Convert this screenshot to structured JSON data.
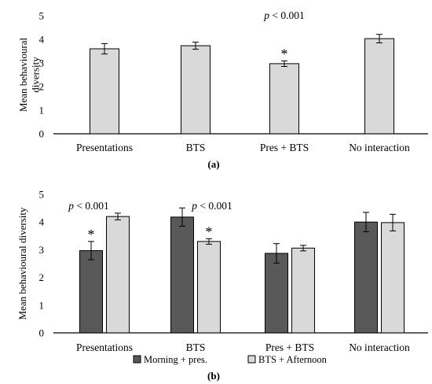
{
  "colors": {
    "light_bar": "#d9d9d9",
    "dark_bar": "#595959",
    "outline": "#000000",
    "axis": "#000000"
  },
  "chart_data": [
    {
      "type": "bar",
      "panel_label": "(a)",
      "ylabel": "Mean behavioural diversity",
      "ylim": [
        0,
        5
      ],
      "yticks": [
        "0",
        "1",
        "2",
        "3",
        "4",
        "5"
      ],
      "categories": [
        "Presentations",
        "BTS",
        "Pres + BTS",
        "No interaction"
      ],
      "series": [
        {
          "values": [
            3.6,
            3.73,
            2.97,
            4.03
          ],
          "errors": [
            0.22,
            0.15,
            0.12,
            0.18
          ]
        }
      ],
      "annotations": [
        {
          "text": "p < 0.001",
          "category_index": 2
        },
        {
          "text": "*",
          "category_index": 2,
          "series_index": 0
        }
      ],
      "grid": false
    },
    {
      "type": "bar",
      "panel_label": "(b)",
      "ylabel": "Mean behavioural diversity",
      "ylim": [
        0,
        5
      ],
      "yticks": [
        "0",
        "1",
        "2",
        "3",
        "4",
        "5"
      ],
      "categories": [
        "Presentations",
        "BTS",
        "Pres + BTS",
        "No interaction"
      ],
      "series": [
        {
          "name": "Morning + pres.",
          "values": [
            2.97,
            4.18,
            2.87,
            4.0
          ],
          "errors": [
            0.33,
            0.33,
            0.35,
            0.35
          ]
        },
        {
          "name": "BTS + Afternoon",
          "values": [
            4.2,
            3.3,
            3.06,
            3.98
          ],
          "errors": [
            0.12,
            0.1,
            0.1,
            0.3
          ]
        }
      ],
      "annotations": [
        {
          "text": "p < 0.001",
          "category_index": 0
        },
        {
          "text": "p < 0.001",
          "category_index": 1
        },
        {
          "text": "*",
          "category_index": 0,
          "series_index": 0
        },
        {
          "text": "*",
          "category_index": 1,
          "series_index": 1
        }
      ],
      "legend": "bottom",
      "grid": false
    }
  ]
}
